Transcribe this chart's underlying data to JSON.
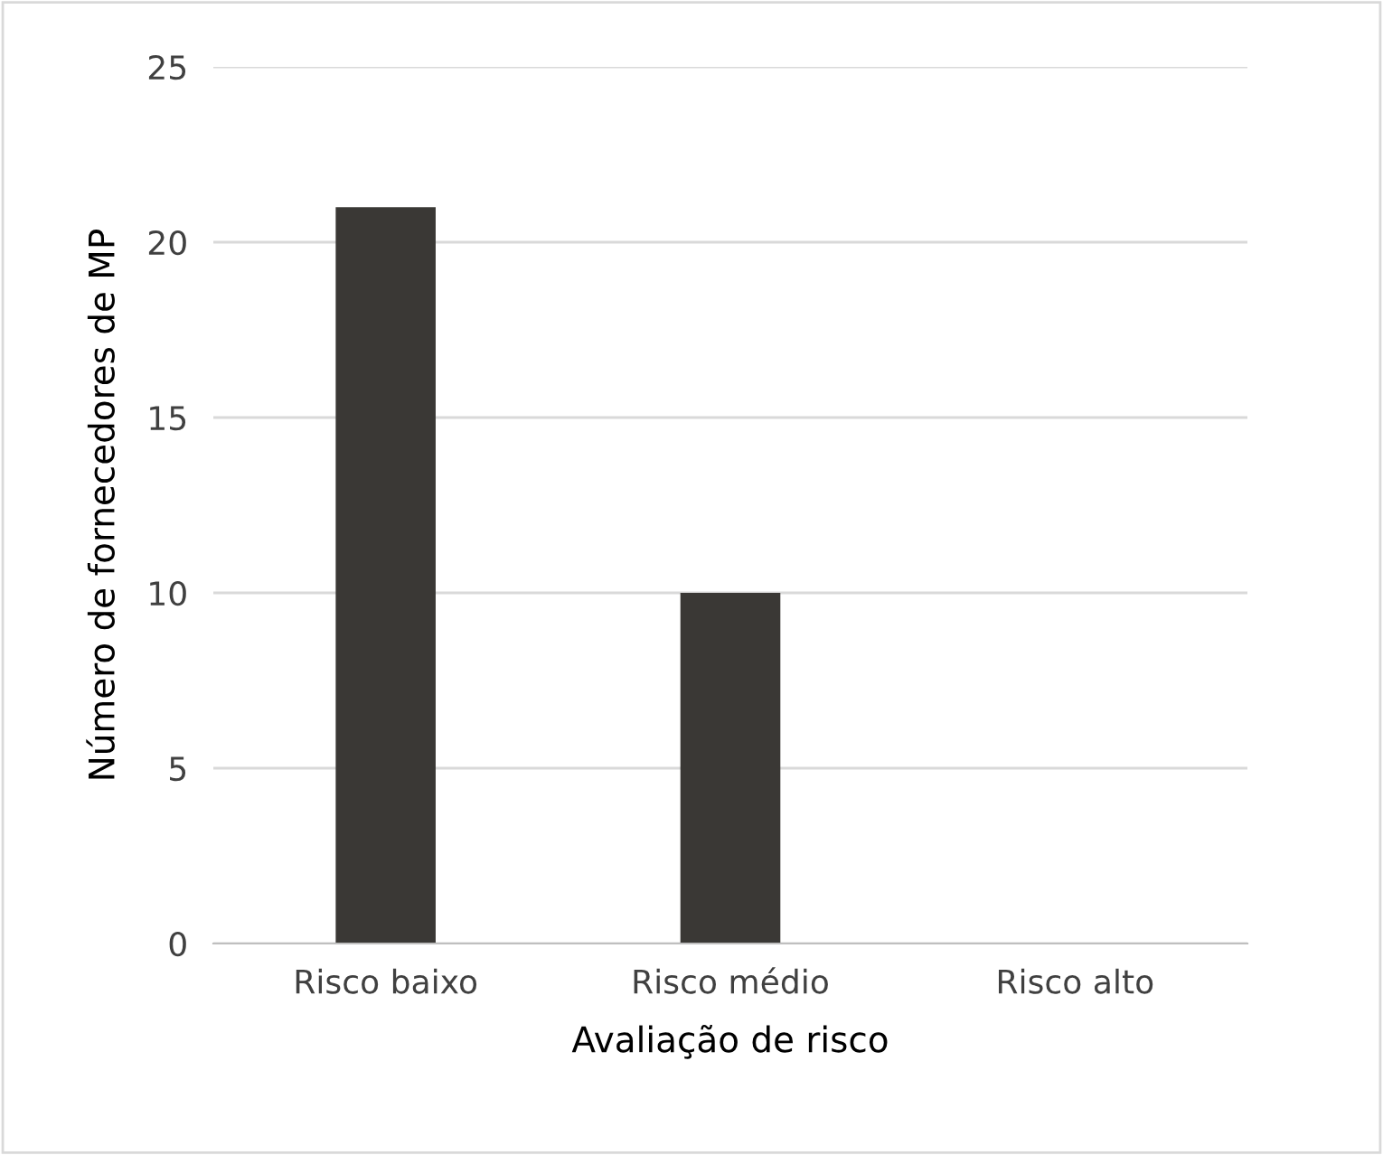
{
  "chart_data": {
    "type": "bar",
    "xlabel": "Avaliação de risco",
    "ylabel": "Número de fornecedores de MP",
    "categories": [
      "Risco baixo",
      "Risco médio",
      "Risco alto"
    ],
    "values": [
      21,
      10,
      0
    ],
    "color": "#3a3835",
    "ylim": [
      0,
      25
    ],
    "yticks": [
      0,
      5,
      10,
      15,
      20,
      25
    ],
    "grid": "y"
  }
}
